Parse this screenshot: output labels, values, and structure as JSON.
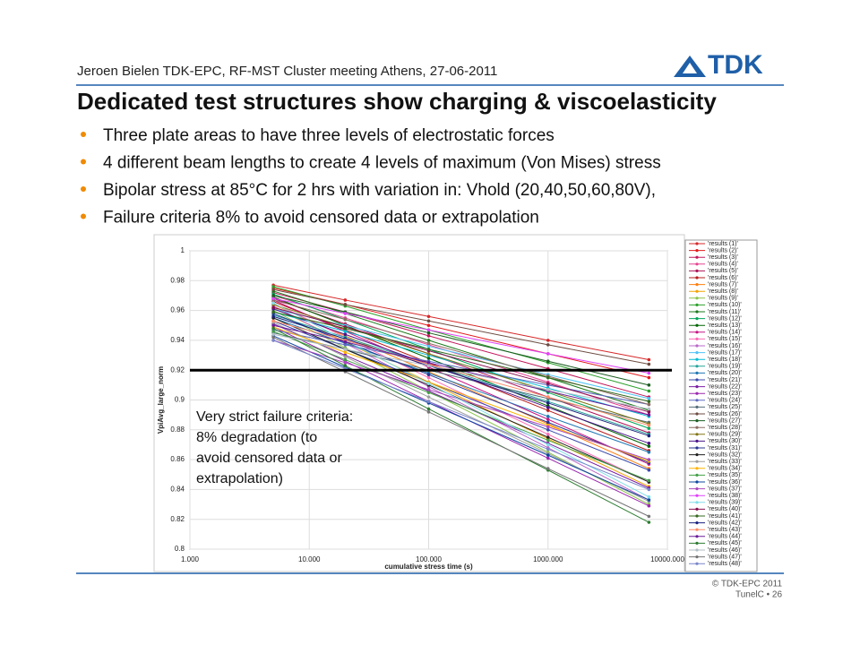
{
  "header": {
    "text": "Jeroen Bielen TDK-EPC, RF-MST Cluster meeting Athens, 27-06-2011",
    "logo": "TDK"
  },
  "title": "Dedicated test structures show charging & viscoelasticity",
  "bullets": [
    "Three plate areas to have three levels of electrostatic forces",
    "4 different beam lengths to create 4 levels of maximum (Von Mises) stress",
    "Bipolar stress at 85°C for 2 hrs with variation in: Vhold (20,40,50,60,80V),",
    "Failure criteria 8% to avoid censored data or extrapolation"
  ],
  "chart_data": {
    "type": "line",
    "x_label": "cumulative stress time (s)",
    "y_label": "VpiAvg_large_norm",
    "annotation": [
      "Very strict failure criteria:",
      "8% degradation (to",
      "avoid censored data or",
      "extrapolation)"
    ],
    "x_log": true,
    "grid": true,
    "reference_line": 0.92,
    "xlim": [
      1,
      10000
    ],
    "ylim": [
      0.8,
      1
    ],
    "xticks": [
      {
        "value": 1,
        "label": "1.000"
      },
      {
        "value": 10,
        "label": "10.000"
      },
      {
        "value": 100,
        "label": "100.000"
      },
      {
        "value": 1000,
        "label": "1000.000"
      },
      {
        "value": 10000,
        "label": "10000.000"
      }
    ],
    "yticks": [
      0.8,
      0.82,
      0.84,
      0.86,
      0.88,
      0.9,
      0.92,
      0.94,
      0.96,
      0.98,
      1
    ],
    "x": [
      5,
      20,
      100,
      1000,
      7000
    ],
    "series": [
      {
        "name": "'results (1)'",
        "color": "#d62728",
        "values": [
          0.977,
          0.967,
          0.956,
          0.94,
          0.927
        ]
      },
      {
        "name": "'results (2)'",
        "color": "#e31a1c",
        "values": [
          0.975,
          0.964,
          0.95,
          0.931,
          0.915
        ]
      },
      {
        "name": "'results (3)'",
        "color": "#c2185b",
        "values": [
          0.972,
          0.959,
          0.943,
          0.921,
          0.902
        ]
      },
      {
        "name": "'results (4)'",
        "color": "#e84393",
        "values": [
          0.97,
          0.955,
          0.937,
          0.912,
          0.89
        ]
      },
      {
        "name": "'results (5)'",
        "color": "#ad1457",
        "values": [
          0.968,
          0.951,
          0.931,
          0.902,
          0.878
        ]
      },
      {
        "name": "'results (6)'",
        "color": "#b71c1c",
        "values": [
          0.966,
          0.947,
          0.925,
          0.893,
          0.866
        ]
      },
      {
        "name": "'results (7)'",
        "color": "#ff7f0e",
        "values": [
          0.964,
          0.943,
          0.919,
          0.884,
          0.854
        ]
      },
      {
        "name": "'results (8)'",
        "color": "#f4a300",
        "values": [
          0.962,
          0.939,
          0.912,
          0.874,
          0.842
        ]
      },
      {
        "name": "'results (9)'",
        "color": "#8bc34a",
        "values": [
          0.96,
          0.935,
          0.906,
          0.865,
          0.83
        ]
      },
      {
        "name": "'results (10)'",
        "color": "#2ca02c",
        "values": [
          0.976,
          0.963,
          0.947,
          0.925,
          0.906
        ]
      },
      {
        "name": "'results (11)'",
        "color": "#1b7a1b",
        "values": [
          0.973,
          0.958,
          0.94,
          0.915,
          0.893
        ]
      },
      {
        "name": "'results (12)'",
        "color": "#00a65a",
        "values": [
          0.971,
          0.954,
          0.934,
          0.905,
          0.881
        ]
      },
      {
        "name": "'results (13)'",
        "color": "#006400",
        "values": [
          0.969,
          0.95,
          0.928,
          0.896,
          0.869
        ]
      },
      {
        "name": "'results (14)'",
        "color": "#c71585",
        "values": [
          0.967,
          0.946,
          0.922,
          0.887,
          0.857
        ]
      },
      {
        "name": "'results (15)'",
        "color": "#ff69b4",
        "values": [
          0.965,
          0.942,
          0.915,
          0.877,
          0.845
        ]
      },
      {
        "name": "'results (16)'",
        "color": "#ba68c8",
        "values": [
          0.963,
          0.938,
          0.909,
          0.868,
          0.833
        ]
      },
      {
        "name": "'results (17)'",
        "color": "#4fc3f7",
        "values": [
          0.961,
          0.95,
          0.936,
          0.917,
          0.901
        ]
      },
      {
        "name": "'results (18)'",
        "color": "#00bcd4",
        "values": [
          0.959,
          0.946,
          0.93,
          0.908,
          0.889
        ]
      },
      {
        "name": "'results (19)'",
        "color": "#26a69a",
        "values": [
          0.957,
          0.942,
          0.924,
          0.899,
          0.877
        ]
      },
      {
        "name": "'results (20)'",
        "color": "#1f77b4",
        "values": [
          0.955,
          0.938,
          0.918,
          0.889,
          0.865
        ]
      },
      {
        "name": "'results (21)'",
        "color": "#3949ab",
        "values": [
          0.953,
          0.934,
          0.912,
          0.88,
          0.853
        ]
      },
      {
        "name": "'results (22)'",
        "color": "#7b1fa2",
        "values": [
          0.951,
          0.93,
          0.906,
          0.871,
          0.841
        ]
      },
      {
        "name": "'results (23)'",
        "color": "#9c27b0",
        "values": [
          0.949,
          0.926,
          0.899,
          0.861,
          0.829
        ]
      },
      {
        "name": "'results (24)'",
        "color": "#5c6bc0",
        "values": [
          0.947,
          0.937,
          0.926,
          0.91,
          0.897
        ]
      },
      {
        "name": "'results (25)'",
        "color": "#546e7a",
        "values": [
          0.945,
          0.934,
          0.92,
          0.901,
          0.885
        ]
      },
      {
        "name": "'results (26)'",
        "color": "#6d4c41",
        "values": [
          0.974,
          0.964,
          0.953,
          0.937,
          0.924
        ]
      },
      {
        "name": "'results (27)'",
        "color": "#1b5e20",
        "values": [
          0.97,
          0.959,
          0.945,
          0.926,
          0.91
        ]
      },
      {
        "name": "'results (28)'",
        "color": "#8d6e63",
        "values": [
          0.967,
          0.954,
          0.938,
          0.916,
          0.897
        ]
      },
      {
        "name": "'results (29)'",
        "color": "#827717",
        "values": [
          0.964,
          0.949,
          0.931,
          0.906,
          0.884
        ]
      },
      {
        "name": "'results (30)'",
        "color": "#4a148c",
        "values": [
          0.961,
          0.944,
          0.924,
          0.895,
          0.871
        ]
      },
      {
        "name": "'results (31)'",
        "color": "#283593",
        "values": [
          0.958,
          0.939,
          0.917,
          0.885,
          0.858
        ]
      },
      {
        "name": "'results (32)'",
        "color": "#212121",
        "values": [
          0.955,
          0.934,
          0.91,
          0.875,
          0.845
        ]
      },
      {
        "name": "'results (33)'",
        "color": "#9e9e9e",
        "values": [
          0.952,
          0.929,
          0.902,
          0.864,
          0.832
        ]
      },
      {
        "name": "'results (34)'",
        "color": "#ffb300",
        "values": [
          0.949,
          0.932,
          0.912,
          0.883,
          0.859
        ]
      },
      {
        "name": "'results (35)'",
        "color": "#43a047",
        "values": [
          0.946,
          0.927,
          0.905,
          0.873,
          0.846
        ]
      },
      {
        "name": "'results (36)'",
        "color": "#0d47a1",
        "values": [
          0.943,
          0.922,
          0.898,
          0.863,
          0.833
        ]
      },
      {
        "name": "'results (37)'",
        "color": "#ab47bc",
        "values": [
          0.94,
          0.925,
          0.907,
          0.882,
          0.86
        ]
      },
      {
        "name": "'results (38)'",
        "color": "#e040fb",
        "values": [
          0.968,
          0.958,
          0.947,
          0.931,
          0.918
        ]
      },
      {
        "name": "'results (39)'",
        "color": "#80deea",
        "values": [
          0.965,
          0.94,
          0.911,
          0.87,
          0.835
        ]
      },
      {
        "name": "'results (40)'",
        "color": "#880e4f",
        "values": [
          0.962,
          0.949,
          0.933,
          0.911,
          0.892
        ]
      },
      {
        "name": "'results (41)'",
        "color": "#33691e",
        "values": [
          0.959,
          0.948,
          0.934,
          0.915,
          0.899
        ]
      },
      {
        "name": "'results (42)'",
        "color": "#1a237e",
        "values": [
          0.956,
          0.941,
          0.923,
          0.898,
          0.876
        ]
      },
      {
        "name": "'results (43)'",
        "color": "#ff8a65",
        "values": [
          0.953,
          0.94,
          0.924,
          0.902,
          0.883
        ]
      },
      {
        "name": "'results (44)'",
        "color": "#6a1b9a",
        "values": [
          0.95,
          0.939,
          0.925,
          0.906,
          0.89
        ]
      },
      {
        "name": "'results (45)'",
        "color": "#2e7d32",
        "values": [
          0.948,
          0.923,
          0.894,
          0.853,
          0.818
        ]
      },
      {
        "name": "'results (46)'",
        "color": "#b0bec5",
        "values": [
          0.944,
          0.934,
          0.923,
          0.907,
          0.894
        ]
      },
      {
        "name": "'results (47)'",
        "color": "#757575",
        "values": [
          0.942,
          0.919,
          0.892,
          0.854,
          0.822
        ]
      },
      {
        "name": "'results (48)'",
        "color": "#7986cb",
        "values": [
          0.94,
          0.921,
          0.899,
          0.867,
          0.84
        ]
      }
    ]
  },
  "footer": [
    "© TDK-EPC 2011",
    "TunelC • 26"
  ]
}
